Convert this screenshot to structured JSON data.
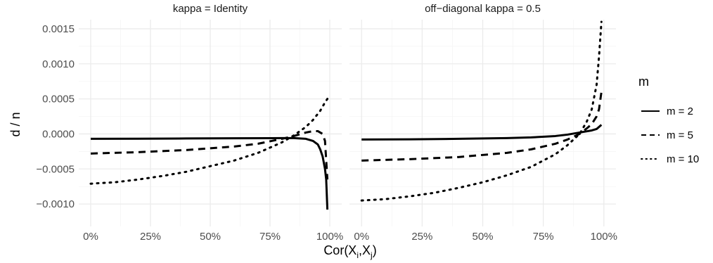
{
  "chart_data": {
    "type": "line",
    "xlabel": "Cor(X",
    "xlabel_sub_i": "i",
    "xlabel_sep": ",X",
    "xlabel_sub_j": "j",
    "xlabel_close": ")",
    "ylabel": "d / n",
    "xlim": [
      0,
      1
    ],
    "ylim": [
      -0.00132,
      0.00163
    ],
    "x_ticks": [
      0,
      0.25,
      0.5,
      0.75,
      1.0
    ],
    "x_tick_labels": [
      "0%",
      "25%",
      "50%",
      "75%",
      "100%"
    ],
    "y_ticks": [
      -0.001,
      -0.0005,
      0.0,
      0.0005,
      0.001,
      0.0015
    ],
    "y_tick_labels": [
      "−0.0010",
      "−0.0005",
      "0.0000",
      "0.0005",
      "0.0010",
      "0.0015"
    ],
    "grid": true,
    "legend": {
      "title": "m",
      "position": "right",
      "entries": [
        {
          "label": "m = 2",
          "style": "solid"
        },
        {
          "label": "m = 5",
          "style": "dashed"
        },
        {
          "label": "m = 10",
          "style": "dotted"
        }
      ]
    },
    "panels": [
      {
        "title": "kappa = Identity",
        "series": [
          {
            "name": "m = 2",
            "style": "solid",
            "points": [
              [
                0.0,
                -7e-05
              ],
              [
                0.2,
                -6.8e-05
              ],
              [
                0.4,
                -6.5e-05
              ],
              [
                0.6,
                -6.2e-05
              ],
              [
                0.8,
                -6e-05
              ],
              [
                0.85,
                -6e-05
              ],
              [
                0.9,
                -7e-05
              ],
              [
                0.93,
                -0.0001
              ],
              [
                0.95,
                -0.00015
              ],
              [
                0.96,
                -0.00022
              ],
              [
                0.97,
                -0.00032
              ],
              [
                0.98,
                -0.0005
              ],
              [
                0.985,
                -0.00065
              ],
              [
                0.99,
                -0.00108
              ]
            ]
          },
          {
            "name": "m = 5",
            "style": "dashed",
            "points": [
              [
                0.0,
                -0.00028
              ],
              [
                0.2,
                -0.00026
              ],
              [
                0.4,
                -0.00023
              ],
              [
                0.6,
                -0.00018
              ],
              [
                0.7,
                -0.00014
              ],
              [
                0.8,
                -7e-05
              ],
              [
                0.85,
                -3e-05
              ],
              [
                0.9,
                2e-05
              ],
              [
                0.93,
                4e-05
              ],
              [
                0.95,
                4e-05
              ],
              [
                0.97,
                0.0
              ],
              [
                0.98,
                -0.0001
              ],
              [
                0.99,
                -0.00065
              ]
            ]
          },
          {
            "name": "m = 10",
            "style": "dotted",
            "points": [
              [
                0.0,
                -0.00071
              ],
              [
                0.1,
                -0.00069
              ],
              [
                0.2,
                -0.00065
              ],
              [
                0.3,
                -0.0006
              ],
              [
                0.4,
                -0.00054
              ],
              [
                0.5,
                -0.00046
              ],
              [
                0.6,
                -0.00038
              ],
              [
                0.7,
                -0.00027
              ],
              [
                0.8,
                -0.00012
              ],
              [
                0.85,
                -2e-05
              ],
              [
                0.9,
                0.0001
              ],
              [
                0.93,
                0.0002
              ],
              [
                0.96,
                0.00033
              ],
              [
                0.98,
                0.00045
              ],
              [
                0.99,
                0.0005
              ]
            ]
          }
        ]
      },
      {
        "title": "off−diagonal kappa = 0.5",
        "series": [
          {
            "name": "m = 2",
            "style": "solid",
            "points": [
              [
                0.0,
                -8e-05
              ],
              [
                0.2,
                -7.7e-05
              ],
              [
                0.4,
                -7e-05
              ],
              [
                0.6,
                -6e-05
              ],
              [
                0.7,
                -5e-05
              ],
              [
                0.8,
                -3e-05
              ],
              [
                0.85,
                -1e-05
              ],
              [
                0.9,
                2e-05
              ],
              [
                0.95,
                5e-05
              ],
              [
                0.97,
                7e-05
              ],
              [
                0.99,
                0.00013
              ]
            ]
          },
          {
            "name": "m = 5",
            "style": "dashed",
            "points": [
              [
                0.0,
                -0.00038
              ],
              [
                0.2,
                -0.00036
              ],
              [
                0.4,
                -0.00033
              ],
              [
                0.6,
                -0.00027
              ],
              [
                0.7,
                -0.00022
              ],
              [
                0.8,
                -0.00014
              ],
              [
                0.85,
                -8e-05
              ],
              [
                0.9,
                0.0
              ],
              [
                0.93,
                8e-05
              ],
              [
                0.95,
                0.00014
              ],
              [
                0.97,
                0.00025
              ],
              [
                0.98,
                0.00035
              ],
              [
                0.99,
                0.0006
              ]
            ]
          },
          {
            "name": "m = 10",
            "style": "dotted",
            "points": [
              [
                0.0,
                -0.00095
              ],
              [
                0.1,
                -0.00093
              ],
              [
                0.2,
                -0.00089
              ],
              [
                0.3,
                -0.00084
              ],
              [
                0.4,
                -0.00077
              ],
              [
                0.5,
                -0.00069
              ],
              [
                0.6,
                -0.00059
              ],
              [
                0.7,
                -0.00047
              ],
              [
                0.8,
                -0.00029
              ],
              [
                0.85,
                -0.00016
              ],
              [
                0.9,
                0.0
              ],
              [
                0.93,
                0.00018
              ],
              [
                0.95,
                0.00035
              ],
              [
                0.97,
                0.0007
              ],
              [
                0.98,
                0.0011
              ],
              [
                0.99,
                0.0016
              ]
            ]
          }
        ]
      }
    ]
  },
  "colors": {
    "panel_bg": "#ffffff",
    "grid_major": "#ebebeb",
    "grid_minor": "#f4f4f4",
    "line": "#000000",
    "tick_text": "#4d4d4d"
  }
}
